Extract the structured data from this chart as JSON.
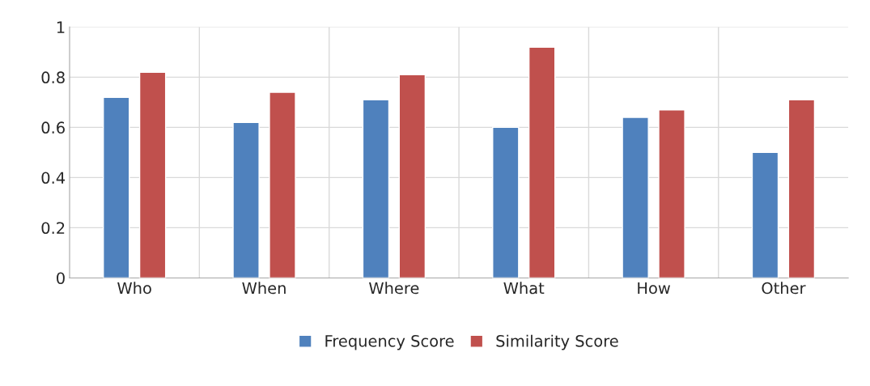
{
  "chart_data": {
    "type": "bar",
    "categories": [
      "Who",
      "When",
      "Where",
      "What",
      "How",
      "Other"
    ],
    "series": [
      {
        "name": "Frequency Score",
        "color": "#4f81bd",
        "values": [
          0.72,
          0.62,
          0.71,
          0.6,
          0.64,
          0.5
        ]
      },
      {
        "name": "Similarity Score",
        "color": "#c0504d",
        "values": [
          0.82,
          0.74,
          0.81,
          0.92,
          0.67,
          0.71
        ]
      }
    ],
    "ylim": [
      0,
      1
    ],
    "yticks": [
      0,
      0.2,
      0.4,
      0.6,
      0.8,
      1
    ],
    "grid": "y",
    "legend": "bottom"
  }
}
